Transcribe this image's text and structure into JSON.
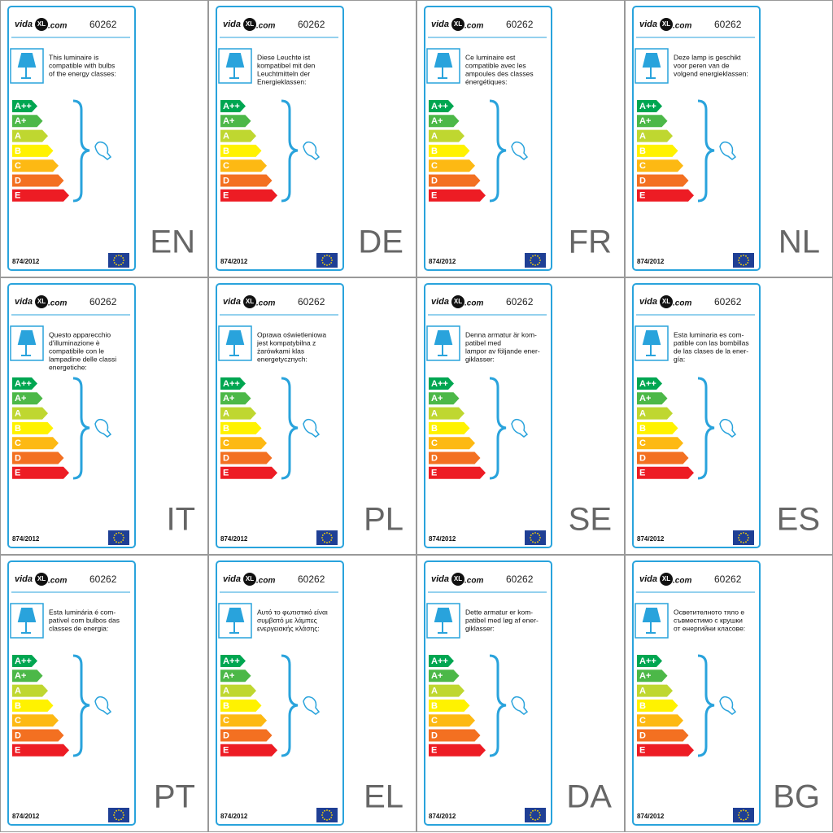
{
  "logo": {
    "prefix": "vida",
    "mark": "XL",
    "suffix": ".com"
  },
  "product_code": "60262",
  "regulation": "874/2012",
  "energy_classes": [
    "A++",
    "A+",
    "A",
    "B",
    "C",
    "D",
    "E"
  ],
  "panels": [
    {
      "code": "EN",
      "text": [
        "This luminaire is",
        "compatible with bulbs",
        "of the energy classes:"
      ]
    },
    {
      "code": "DE",
      "text": [
        "Diese Leuchte ist",
        "kompatibel mit den",
        "Leuchtmitteln der",
        "Energieklassen:"
      ]
    },
    {
      "code": "FR",
      "text": [
        "Ce luminaire est",
        "compatible avec les",
        "ampoules des classes",
        "énergétiques:"
      ]
    },
    {
      "code": "NL",
      "text": [
        "Deze lamp is geschikt",
        "voor peren van de",
        "volgend energieklassen:"
      ]
    },
    {
      "code": "IT",
      "text": [
        "Questo apparecchio",
        "d'illuminazione è",
        "compatibile con le",
        "lampadine delle classi",
        "energetiche:"
      ]
    },
    {
      "code": "PL",
      "text": [
        "Oprawa oświetleniowa",
        "jest kompatybilna z",
        "żarówkami klas",
        "energetycznych:"
      ]
    },
    {
      "code": "SE",
      "text": [
        "Denna armatur är kom-",
        "patibel med",
        "lampor av följande ener-",
        "giklasser:"
      ]
    },
    {
      "code": "ES",
      "text": [
        "Esta luminaria es com-",
        "patible con las bombillas",
        "de las clases de la ener-",
        "gía:"
      ]
    },
    {
      "code": "PT",
      "text": [
        "Esta luminária é com-",
        "patível com bulbos das",
        "classes de energia:"
      ]
    },
    {
      "code": "EL",
      "text": [
        "Αυτό το φωτιστικό είναι",
        "συμβατό με λάμπες",
        "ενεργειακής κλάσης:"
      ]
    },
    {
      "code": "DA",
      "text": [
        "Dette armatur er kom-",
        "patibel med løg af ener-",
        "giklasser:"
      ]
    },
    {
      "code": "BG",
      "text": [
        "Осветителното тяло е",
        "съвместимо с крушки",
        "от енергийни класове:"
      ]
    }
  ]
}
